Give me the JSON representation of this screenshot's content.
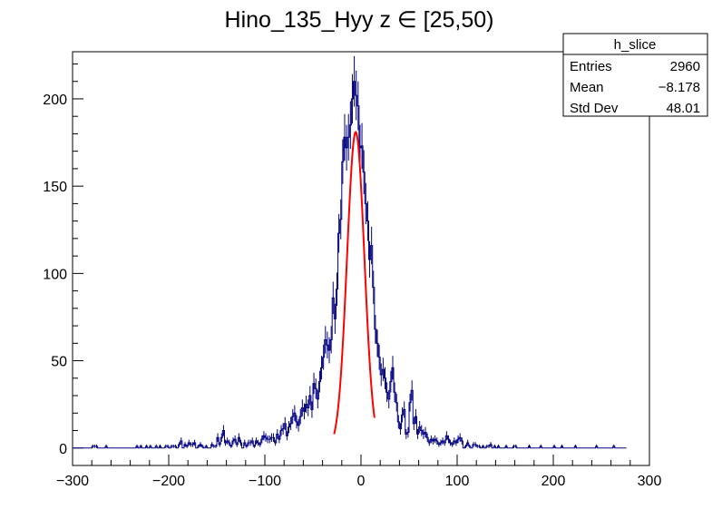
{
  "chart_data": {
    "type": "bar",
    "title": "Hino_135_Hyy z  ∈ [25,50)",
    "xlabel": "",
    "ylabel": "",
    "xlim": [
      -300,
      300
    ],
    "ylim": [
      -10,
      227
    ],
    "x_ticks": [
      -300,
      -200,
      -100,
      0,
      100,
      200,
      300
    ],
    "x_tick_labels": [
      "−300",
      "−200",
      "−100",
      "0",
      "100",
      "200",
      "300"
    ],
    "y_ticks": [
      0,
      50,
      100,
      150,
      200
    ],
    "y_tick_labels": [
      "0",
      "50",
      "100",
      "150",
      "200"
    ],
    "grid": false,
    "legend": "none",
    "histogram": {
      "name": "h_slice",
      "bin_width": 2,
      "x_start": -300,
      "values": [
        0,
        0,
        0,
        0,
        0,
        0,
        0,
        0,
        0,
        0,
        1,
        1,
        1,
        0,
        0,
        0,
        0,
        1,
        0,
        0,
        0,
        0,
        0,
        0,
        0,
        0,
        0,
        0,
        0,
        0,
        0,
        0,
        0,
        1,
        0,
        1,
        0,
        0,
        1,
        0,
        1,
        0,
        0,
        1,
        0,
        1,
        0,
        0,
        1,
        1,
        0,
        1,
        1,
        1,
        0,
        2,
        4,
        0,
        2,
        1,
        3,
        2,
        2,
        3,
        0,
        1,
        2,
        1,
        0,
        1,
        0,
        0,
        2,
        1,
        1,
        6,
        2,
        6,
        10,
        3,
        4,
        3,
        1,
        4,
        5,
        2,
        6,
        3,
        0,
        3,
        1,
        3,
        3,
        4,
        1,
        4,
        3,
        2,
        5,
        7,
        6,
        5,
        5,
        6,
        6,
        3,
        8,
        5,
        10,
        11,
        14,
        7,
        12,
        14,
        18,
        20,
        15,
        13,
        18,
        23,
        21,
        25,
        23,
        30,
        22,
        37,
        34,
        28,
        38,
        46,
        52,
        62,
        59,
        56,
        62,
        86,
        74,
        91,
        123,
        131,
        164,
        178,
        172,
        178,
        185,
        200,
        210,
        202,
        196,
        172,
        173,
        158,
        140,
        130,
        108,
        116,
        92,
        68,
        60,
        52,
        42,
        45,
        40,
        32,
        28,
        38,
        46,
        32,
        26,
        15,
        11,
        19,
        22,
        8,
        9,
        26,
        33,
        14,
        18,
        8,
        12,
        10,
        8,
        9,
        6,
        3,
        5,
        4,
        5,
        4,
        2,
        3,
        4,
        3,
        7,
        5,
        3,
        2,
        4,
        3,
        5,
        6,
        4,
        0,
        1,
        3,
        1,
        0,
        2,
        2,
        1,
        1,
        0,
        1,
        0,
        1,
        1,
        2,
        0,
        1,
        0,
        1,
        0,
        0,
        0,
        1,
        0,
        0,
        0,
        1,
        1,
        0,
        0,
        0,
        0,
        0,
        0,
        1,
        0,
        0,
        0,
        0,
        0,
        1,
        0,
        0,
        0,
        0,
        0,
        0,
        1,
        0,
        0,
        0,
        1,
        0,
        0,
        0,
        0,
        0,
        0,
        1,
        0,
        0,
        0,
        0,
        0,
        0,
        0,
        0,
        0,
        0,
        1,
        0,
        0,
        0,
        0,
        0,
        0,
        0,
        0,
        1,
        0,
        0,
        0,
        0,
        0,
        0
      ],
      "color": "#000080"
    },
    "fit": {
      "type": "gaussian",
      "amplitude": 181,
      "mean": -5.5,
      "sigma": 9,
      "x_range": [
        -28,
        14
      ],
      "color": "#ff0000"
    }
  },
  "stats_box": {
    "title": "h_slice",
    "rows": [
      {
        "label": "Entries",
        "value": "2960"
      },
      {
        "label": "Mean",
        "value": "−8.178"
      },
      {
        "label": "Std Dev",
        "value": "48.01"
      }
    ]
  }
}
